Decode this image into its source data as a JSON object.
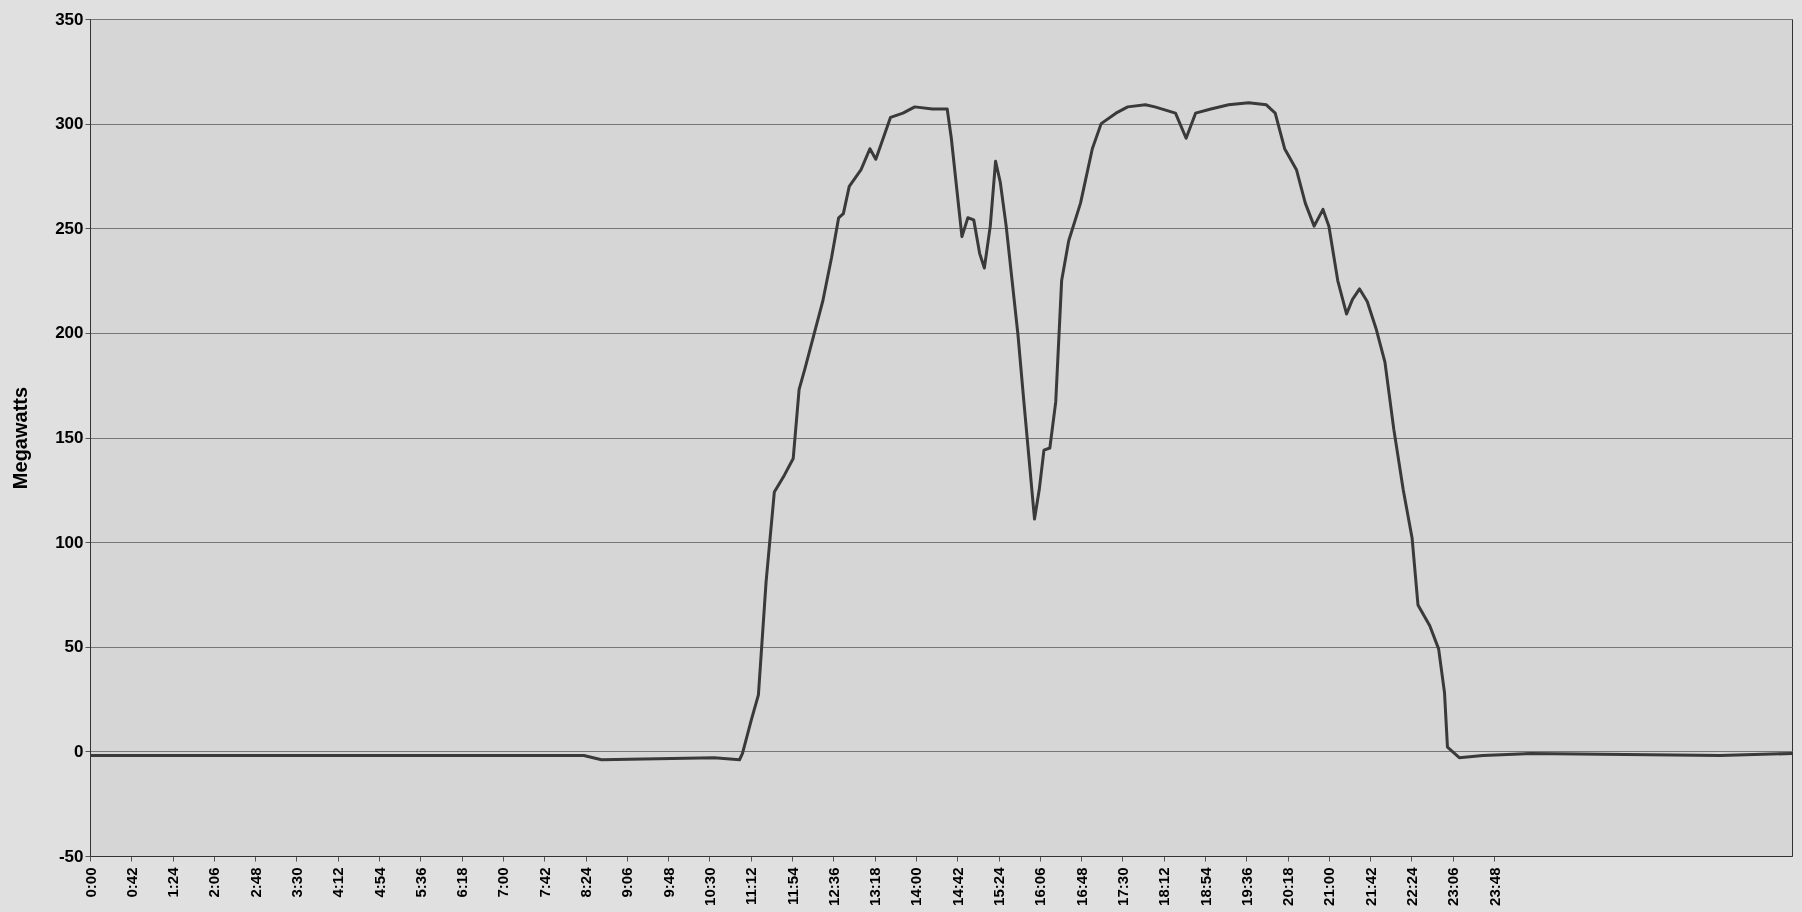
{
  "chart_data": {
    "type": "line",
    "ylabel": "Megawatts",
    "x": [
      0,
      8.37,
      8.67,
      10.58,
      11.01,
      11.06,
      11.21,
      11.33,
      11.46,
      11.6,
      11.77,
      11.92,
      12.02,
      12.12,
      12.27,
      12.42,
      12.57,
      12.69,
      12.77,
      12.87,
      13.07,
      13.22,
      13.32,
      13.42,
      13.57,
      13.78,
      13.98,
      14.28,
      14.53,
      14.6,
      14.68,
      14.78,
      14.88,
      14.98,
      15.08,
      15.16,
      15.26,
      15.35,
      15.43,
      15.53,
      15.63,
      15.73,
      15.83,
      15.93,
      16.01,
      16.09,
      16.17,
      16.27,
      16.37,
      16.47,
      16.59,
      16.79,
      16.99,
      17.14,
      17.39,
      17.59,
      17.89,
      18.05,
      18.4,
      18.58,
      18.74,
      19.0,
      19.3,
      19.64,
      19.94,
      20.09,
      20.25,
      20.45,
      20.6,
      20.75,
      20.9,
      21.0,
      21.15,
      21.3,
      21.4,
      21.52,
      21.65,
      21.8,
      21.95,
      22.1,
      22.26,
      22.41,
      22.51,
      22.71,
      22.86,
      22.96,
      23.01,
      23.21,
      23.61,
      24.41,
      27.63,
      28.85
    ],
    "series": [
      {
        "color": "#3a3a3a",
        "values": [
          -2,
          -2,
          -4,
          -3,
          -4,
          -1,
          15,
          27,
          81,
          124,
          132,
          140,
          173,
          183,
          199,
          215,
          236,
          255,
          257,
          270,
          278,
          288,
          283,
          291,
          303,
          305,
          308,
          307,
          307,
          293,
          272,
          246,
          255,
          254,
          238,
          231,
          251,
          282,
          272,
          251,
          225,
          199,
          167,
          136,
          111,
          125,
          144,
          145,
          167,
          225,
          244,
          262,
          288,
          300,
          305,
          308,
          309,
          308,
          305,
          293,
          305,
          307,
          309,
          310,
          309,
          305,
          288,
          278,
          262,
          251,
          259,
          251,
          225,
          209,
          216,
          221,
          215,
          202,
          186,
          154,
          125,
          102,
          70,
          60,
          49,
          28,
          2,
          -3,
          -2,
          -1,
          -2,
          -1
        ]
      }
    ],
    "xlim": [
      0,
      28.85
    ],
    "xticks": [
      {
        "value": 0,
        "label": "0:00"
      },
      {
        "value": 0.7,
        "label": "0:42"
      },
      {
        "value": 1.4,
        "label": "1:24"
      },
      {
        "value": 2.1,
        "label": "2:06"
      },
      {
        "value": 2.8,
        "label": "2:48"
      },
      {
        "value": 3.5,
        "label": "3:30"
      },
      {
        "value": 4.2,
        "label": "4:12"
      },
      {
        "value": 4.9,
        "label": "4:54"
      },
      {
        "value": 5.6,
        "label": "5:36"
      },
      {
        "value": 6.3,
        "label": "6:18"
      },
      {
        "value": 7.0,
        "label": "7:00"
      },
      {
        "value": 7.7,
        "label": "7:42"
      },
      {
        "value": 8.4,
        "label": "8:24"
      },
      {
        "value": 9.1,
        "label": "9:06"
      },
      {
        "value": 9.8,
        "label": "9:48"
      },
      {
        "value": 10.5,
        "label": "10:30"
      },
      {
        "value": 11.2,
        "label": "11:12"
      },
      {
        "value": 11.9,
        "label": "11:54"
      },
      {
        "value": 12.6,
        "label": "12:36"
      },
      {
        "value": 13.3,
        "label": "13:18"
      },
      {
        "value": 14.0,
        "label": "14:00"
      },
      {
        "value": 14.7,
        "label": "14:42"
      },
      {
        "value": 15.4,
        "label": "15:24"
      },
      {
        "value": 16.1,
        "label": "16:06"
      },
      {
        "value": 16.8,
        "label": "16:48"
      },
      {
        "value": 17.5,
        "label": "17:30"
      },
      {
        "value": 18.2,
        "label": "18:12"
      },
      {
        "value": 18.9,
        "label": "18:54"
      },
      {
        "value": 19.6,
        "label": "19:36"
      },
      {
        "value": 20.3,
        "label": "20:18"
      },
      {
        "value": 21.0,
        "label": "21:00"
      },
      {
        "value": 21.7,
        "label": "21:42"
      },
      {
        "value": 22.4,
        "label": "22:24"
      },
      {
        "value": 23.1,
        "label": "23:06"
      },
      {
        "value": 23.8,
        "label": "23:48"
      }
    ],
    "ylim": [
      -50,
      350
    ],
    "yticks": [
      -50,
      0,
      50,
      100,
      150,
      200,
      250,
      300,
      350
    ],
    "grid": "y"
  }
}
